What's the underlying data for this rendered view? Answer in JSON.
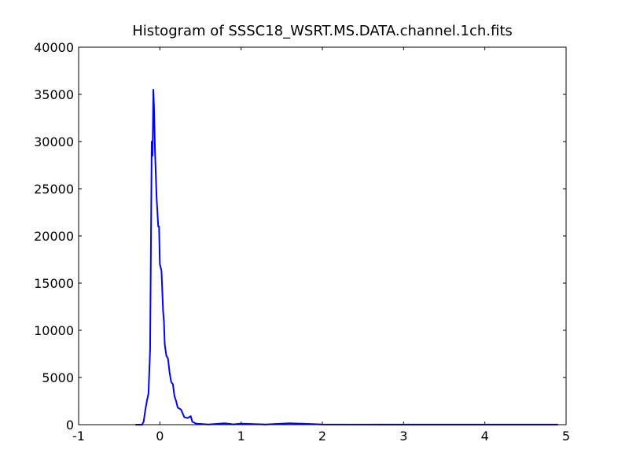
{
  "chart_data": {
    "type": "line",
    "title": "Histogram of SSSC18_WSRT.MS.DATA.channel.1ch.fits",
    "x": [
      -0.3,
      -0.22,
      -0.2,
      -0.18,
      -0.16,
      -0.14,
      -0.12,
      -0.1,
      -0.09,
      -0.08,
      -0.07,
      -0.06,
      -0.04,
      -0.02,
      -0.01,
      0.0,
      0.02,
      0.04,
      0.05,
      0.06,
      0.08,
      0.1,
      0.12,
      0.14,
      0.16,
      0.18,
      0.2,
      0.22,
      0.26,
      0.3,
      0.34,
      0.38,
      0.4,
      0.45,
      0.6,
      0.8,
      0.9,
      1.0,
      1.3,
      1.6,
      2.0,
      3.0,
      4.9
    ],
    "series": [
      {
        "name": "histogram",
        "color": "#0000ff",
        "values": [
          0,
          0,
          300,
          1500,
          2500,
          3300,
          8000,
          30000,
          28500,
          35500,
          33000,
          29000,
          24000,
          21000,
          21000,
          17000,
          16300,
          12000,
          11000,
          8500,
          7300,
          7000,
          5500,
          4500,
          4300,
          3000,
          2500,
          1800,
          1600,
          800,
          700,
          900,
          300,
          100,
          20,
          150,
          30,
          100,
          20,
          150,
          20,
          10,
          10
        ]
      }
    ],
    "xlim": [
      -1,
      5
    ],
    "xticks": [
      -1,
      0,
      1,
      2,
      3,
      4,
      5
    ],
    "ylim": [
      0,
      40000
    ],
    "yticks": [
      0,
      5000,
      10000,
      15000,
      20000,
      25000,
      30000,
      35000,
      40000
    ]
  }
}
